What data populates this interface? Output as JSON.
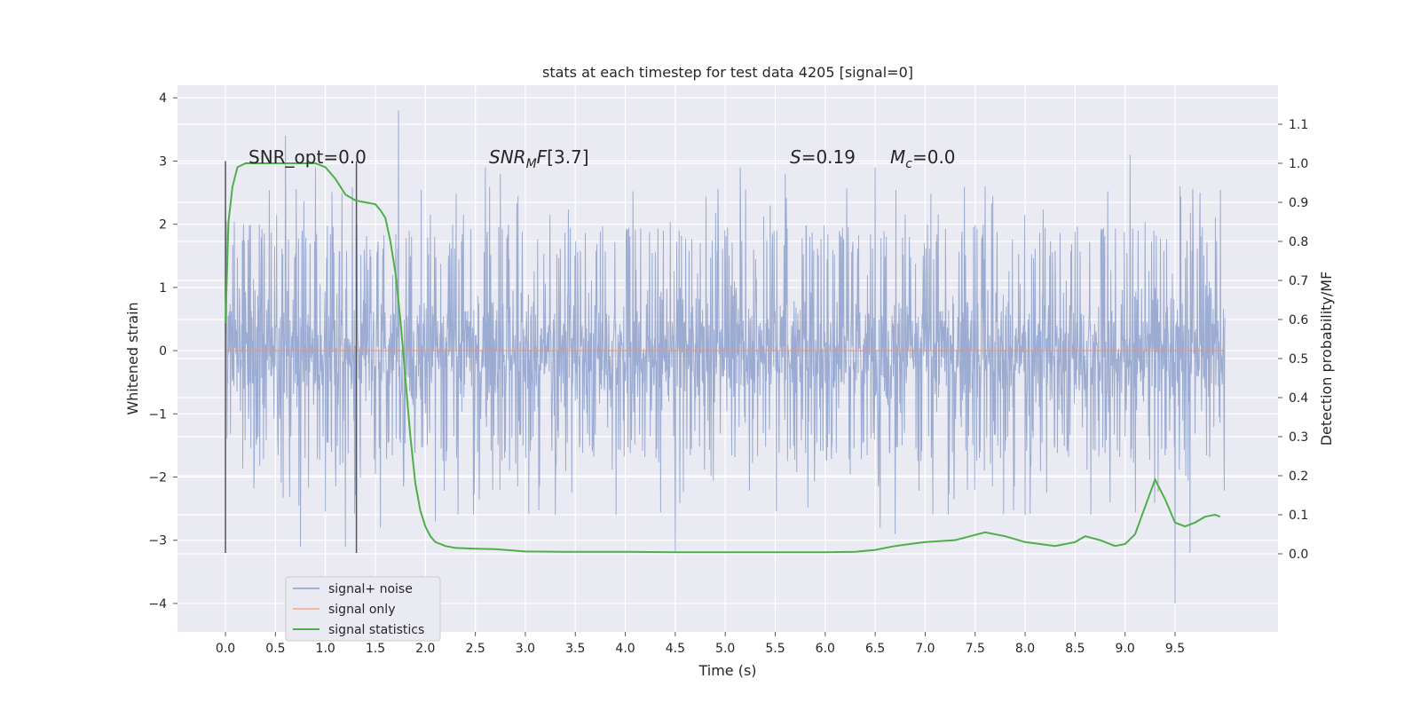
{
  "chart_data": {
    "type": "line",
    "title": "stats at each timestep for test data 4205 [signal=0]",
    "xlabel": "Time (s)",
    "ylabel": "Whitened strain",
    "y2label": "Detection probability/MF",
    "xlim": [
      -0.48,
      10.53
    ],
    "ylim": [
      -4.45,
      4.2
    ],
    "y2lim": [
      -0.2,
      1.2
    ],
    "x_ticks": [
      "0.0",
      "0.5",
      "1.0",
      "1.5",
      "2.0",
      "2.5",
      "3.0",
      "3.5",
      "4.0",
      "4.5",
      "5.0",
      "5.5",
      "6.0",
      "6.5",
      "7.0",
      "7.5",
      "8.0",
      "8.5",
      "9.0",
      "9.5"
    ],
    "y_ticks": [
      "4",
      "3",
      "2",
      "1",
      "0",
      "−1",
      "−2",
      "−3",
      "−4"
    ],
    "y2_ticks": [
      "1.1",
      "1.0",
      "0.9",
      "0.8",
      "0.7",
      "0.6",
      "0.5",
      "0.4",
      "0.3",
      "0.2",
      "0.1",
      "0.0"
    ],
    "grid": true,
    "legend_position": "lower-left",
    "annotations": {
      "snr_opt": "SNR_opt=0.0",
      "snr_mf": "[3.7]",
      "s_value": "=0.19",
      "mc_value": "=0.0"
    },
    "vertical_lines": [
      {
        "x": 0.0,
        "y_range": [
          -3.2,
          3.0
        ]
      },
      {
        "x": 1.31,
        "y_range": [
          -3.2,
          3.0
        ]
      }
    ],
    "series": [
      {
        "name": "signal+ noise",
        "axis": "left",
        "color": "#8da0cb",
        "kind": "noise",
        "x_range": [
          0.0,
          10.0
        ],
        "envelope": [
          -1.4,
          1.6
        ],
        "spikes": [
          [
            0.6,
            3.4
          ],
          [
            0.75,
            -3.1
          ],
          [
            0.9,
            2.9
          ],
          [
            1.2,
            -3.1
          ],
          [
            1.73,
            3.8
          ],
          [
            1.55,
            -2.8
          ],
          [
            2.1,
            -2.7
          ],
          [
            2.6,
            2.9
          ],
          [
            2.75,
            2.8
          ],
          [
            3.3,
            -2.6
          ],
          [
            4.5,
            -3.2
          ],
          [
            5.15,
            2.9
          ],
          [
            5.6,
            2.8
          ],
          [
            6.5,
            2.9
          ],
          [
            6.55,
            -2.8
          ],
          [
            6.7,
            -2.9
          ],
          [
            7.6,
            2.6
          ],
          [
            8.0,
            -2.6
          ],
          [
            8.85,
            -2.4
          ],
          [
            9.05,
            3.1
          ],
          [
            9.5,
            -4.0
          ],
          [
            9.65,
            -3.2
          ],
          [
            9.55,
            2.6
          ],
          [
            9.75,
            2.5
          ]
        ]
      },
      {
        "name": "signal only",
        "axis": "left",
        "color": "#fc8d62",
        "x": [
          0.0,
          10.0
        ],
        "y": [
          0.0,
          0.0
        ]
      },
      {
        "name": "signal statistics",
        "axis": "right",
        "color": "#4daf4a",
        "x": [
          0.0,
          0.03,
          0.07,
          0.12,
          0.2,
          0.3,
          0.5,
          0.7,
          0.9,
          1.0,
          1.1,
          1.2,
          1.3,
          1.4,
          1.5,
          1.55,
          1.6,
          1.65,
          1.7,
          1.75,
          1.8,
          1.85,
          1.9,
          1.95,
          2.0,
          2.05,
          2.1,
          2.2,
          2.3,
          2.5,
          2.7,
          3.0,
          3.5,
          4.0,
          4.5,
          5.0,
          5.5,
          6.0,
          6.3,
          6.5,
          6.7,
          7.0,
          7.3,
          7.45,
          7.6,
          7.8,
          8.0,
          8.3,
          8.5,
          8.6,
          8.75,
          8.9,
          9.0,
          9.1,
          9.2,
          9.3,
          9.4,
          9.5,
          9.6,
          9.7,
          9.8,
          9.9,
          9.95
        ],
        "y": [
          0.59,
          0.85,
          0.94,
          0.99,
          1.0,
          1.0,
          1.0,
          1.0,
          1.0,
          0.99,
          0.96,
          0.92,
          0.905,
          0.9,
          0.895,
          0.88,
          0.86,
          0.8,
          0.72,
          0.6,
          0.45,
          0.3,
          0.18,
          0.11,
          0.07,
          0.045,
          0.03,
          0.02,
          0.015,
          0.013,
          0.012,
          0.006,
          0.005,
          0.005,
          0.004,
          0.004,
          0.004,
          0.004,
          0.005,
          0.01,
          0.02,
          0.03,
          0.035,
          0.045,
          0.055,
          0.045,
          0.03,
          0.02,
          0.03,
          0.045,
          0.035,
          0.02,
          0.025,
          0.05,
          0.12,
          0.19,
          0.14,
          0.08,
          0.07,
          0.08,
          0.095,
          0.1,
          0.095
        ]
      }
    ]
  }
}
